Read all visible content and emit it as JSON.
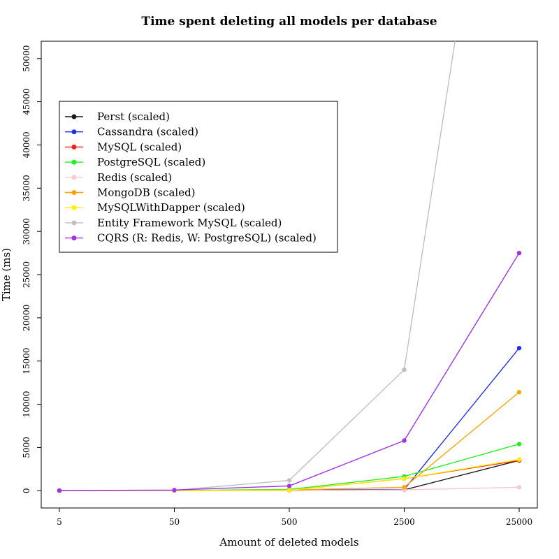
{
  "chart_data": {
    "type": "line",
    "title": "Time spent deleting all models per database",
    "xlabel": "Amount of deleted models",
    "ylabel": "Time (ms)",
    "x_scale": "categorical",
    "categories": [
      "5",
      "50",
      "500",
      "2500",
      "25000"
    ],
    "ylim": [
      -2000,
      52000
    ],
    "y_ticks": [
      0,
      5000,
      10000,
      15000,
      20000,
      25000,
      30000,
      35000,
      40000,
      45000,
      50000
    ],
    "grid": false,
    "legend_position": "top-left",
    "series": [
      {
        "name": "Perst (scaled)",
        "color": "#1a1a1a",
        "values": [
          5,
          10,
          30,
          100,
          3500
        ]
      },
      {
        "name": "Cassandra (scaled)",
        "color": "#1f2ff0",
        "values": [
          10,
          20,
          80,
          150,
          16500
        ]
      },
      {
        "name": "MySQL (scaled)",
        "color": "#ff1a1a",
        "values": [
          10,
          20,
          60,
          1400,
          3500
        ]
      },
      {
        "name": "PostgreSQL (scaled)",
        "color": "#22ee22",
        "values": [
          10,
          20,
          150,
          1650,
          5400
        ]
      },
      {
        "name": "Redis (scaled)",
        "color": "#ffc8d0",
        "values": [
          5,
          10,
          20,
          100,
          400
        ]
      },
      {
        "name": "MongoDB (scaled)",
        "color": "#ffa500",
        "values": [
          10,
          20,
          80,
          400,
          11400
        ]
      },
      {
        "name": "MySQLWithDapper (scaled)",
        "color": "#ffee00",
        "values": [
          10,
          20,
          60,
          1400,
          3600
        ]
      },
      {
        "name": "Entity Framework MySQL (scaled)",
        "color": "#c0c0c0",
        "values": [
          20,
          50,
          1200,
          14000,
          100000
        ]
      },
      {
        "name": "CQRS (R: Redis, W: PostgreSQL) (scaled)",
        "color": "#a033e8",
        "values": [
          15,
          80,
          550,
          5800,
          27500
        ]
      }
    ]
  }
}
